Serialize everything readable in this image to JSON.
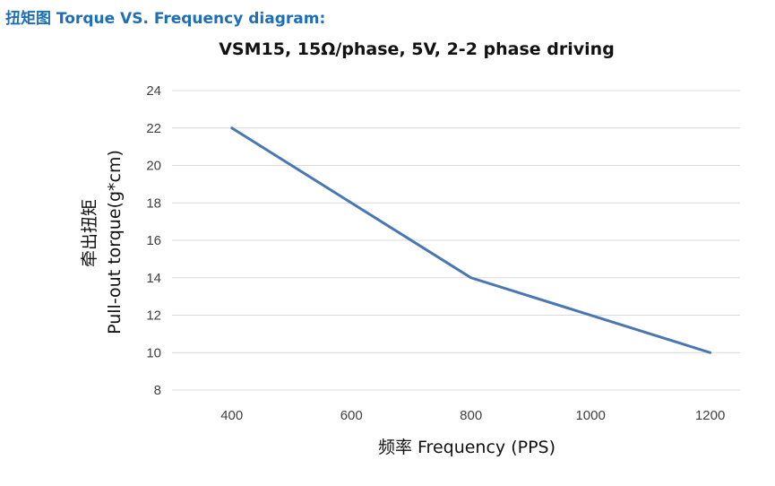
{
  "page": {
    "heading": "扭矩图  Torque VS. Frequency diagram:"
  },
  "chart_data": {
    "type": "line",
    "title": "VSM15, 15Ω/phase, 5V, 2-2 phase driving",
    "xlabel": "频率 Frequency (PPS)",
    "ylabel_cn": "牵出扭矩",
    "ylabel_en": "Pull-out torque(g*cm)",
    "x": [
      400,
      800,
      1200
    ],
    "series": [
      {
        "name": "Pull-out torque",
        "values": [
          22,
          14,
          10
        ]
      }
    ],
    "xticks": [
      400,
      600,
      800,
      1000,
      1200
    ],
    "yticks": [
      8,
      10,
      12,
      14,
      16,
      18,
      20,
      22,
      24
    ],
    "xlim": [
      300,
      1250
    ],
    "ylim": [
      8,
      24
    ],
    "grid": true,
    "colors": {
      "line": "#4a76b4",
      "grid": "#d9d9d9"
    }
  }
}
